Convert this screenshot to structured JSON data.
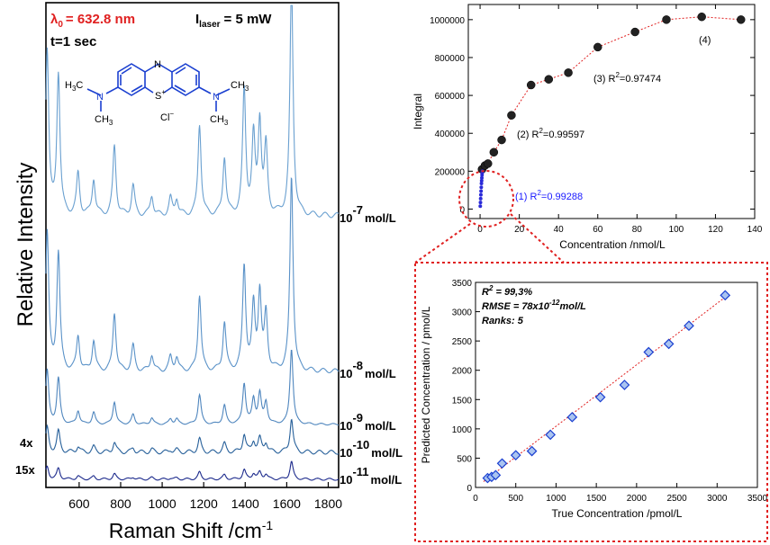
{
  "raman": {
    "ylabel": "Relative Intensity",
    "xlabel_main": "Raman Shift /cm",
    "xlabel_sup": "-1",
    "x_ticks": [
      "600",
      "800",
      "1000",
      "1200",
      "1400",
      "1600",
      "1800"
    ],
    "lambda_sym": "λ",
    "lambda_sub": "0",
    "lambda_val": "= 632.8 nm",
    "laser_I": "I",
    "laser_sub": "laser",
    "laser_val": "= 5 mW",
    "time": "t=1 sec",
    "mol_chain": {
      "H3C": "H",
      "sub3": "3",
      "Cprefix": "C",
      "N": "N",
      "S": "S",
      "plus": "+",
      "CH3": "CH",
      "CH3sub": "3",
      "Cl": "Cl",
      "minus": "−"
    },
    "traces": [
      {
        "base": "10",
        "exp": "-7",
        "unit": "mol/L"
      },
      {
        "base": "10",
        "exp": "-8",
        "unit": "mol/L"
      },
      {
        "base": "10",
        "exp": "-9",
        "unit": "mol/L"
      },
      {
        "base": "10",
        "exp": "-10",
        "unit": "mol/L"
      },
      {
        "base": "10",
        "exp": "-11",
        "unit": "mol/L"
      }
    ],
    "mult_4x": "4x",
    "mult_15x": "15x"
  },
  "calib": {
    "ylabel": "Integral",
    "xlabel": "Concentration /nmol/L",
    "x_ticks": [
      "0",
      "20",
      "40",
      "60",
      "80",
      "100",
      "120",
      "140"
    ],
    "y_ticks": [
      "0",
      "200000",
      "400000",
      "600000",
      "800000",
      "1000000"
    ],
    "ann1": "(1) R",
    "ann1_val": "=0.99288",
    "ann2": "(2)  R",
    "ann2_val": "=0.99597",
    "ann3": "(3) R",
    "ann3_val": "=0.97474",
    "ann4": "(4)",
    "sup2": "2"
  },
  "pred": {
    "ylabel": "Predicted Concentration / pmol/L",
    "xlabel": "True Concentration /pmol/L",
    "x_ticks": [
      "0",
      "500",
      "1000",
      "1500",
      "2000",
      "2500",
      "3000",
      "3500"
    ],
    "y_ticks": [
      "0",
      "500",
      "1000",
      "1500",
      "2000",
      "2500",
      "3000",
      "3500"
    ],
    "r2_label": "R",
    "r2_sup": "2",
    "r2_val": " = 99,3%",
    "rmse_label": "RMSE = 78x10",
    "rmse_sup": "-12",
    "rmse_unit": "mol/L",
    "ranks": "Ranks: 5"
  },
  "chart_data": [
    {
      "type": "line",
      "title": "",
      "xlabel": "Raman Shift /cm-1",
      "ylabel": "Relative Intensity",
      "xlim": [
        440,
        1850
      ],
      "peaks_cm1": [
        446,
        500,
        595,
        670,
        770,
        860,
        950,
        1040,
        1070,
        1180,
        1300,
        1395,
        1440,
        1470,
        1500,
        1623
      ],
      "series": [
        {
          "name": "10-7 mol/L"
        },
        {
          "name": "10-8 mol/L"
        },
        {
          "name": "10-9 mol/L"
        },
        {
          "name": "10-10 mol/L"
        },
        {
          "name": "10-11 mol/L"
        }
      ]
    },
    {
      "type": "scatter",
      "xlabel": "Concentration /nmol/L",
      "ylabel": "Integral",
      "xlim": [
        -6,
        140
      ],
      "ylim": [
        -50000,
        1080000
      ],
      "series": [
        {
          "name": "",
          "x": [
            1,
            2.5,
            4,
            7,
            11,
            16,
            26,
            35,
            45,
            60,
            79,
            95,
            113,
            133
          ],
          "y": [
            210000,
            230000,
            240000,
            300000,
            365000,
            495000,
            655000,
            685000,
            720000,
            855000,
            935000,
            1000000,
            1015000,
            1000000
          ]
        },
        {
          "name": "",
          "x": [
            0.1,
            0.2,
            0.3,
            0.4,
            0.5,
            0.6,
            0.7,
            0.8,
            0.9,
            1.0,
            1.1,
            1.2
          ],
          "y": [
            15000,
            35000,
            55000,
            75000,
            95000,
            115000,
            135000,
            150000,
            165000,
            180000,
            192000,
            200000
          ]
        }
      ]
    },
    {
      "type": "scatter",
      "xlabel": "True Concentration /pmol/L",
      "ylabel": "Predicted Concentration / pmol/L",
      "xlim": [
        0,
        3500
      ],
      "ylim": [
        0,
        3500
      ],
      "series": [
        {
          "name": "",
          "x": [
            150,
            200,
            250,
            330,
            500,
            700,
            930,
            1200,
            1550,
            1850,
            2150,
            2400,
            2650,
            3100
          ],
          "y": [
            160,
            180,
            210,
            410,
            550,
            620,
            900,
            1200,
            1540,
            1750,
            2310,
            2450,
            2760,
            3280
          ]
        }
      ]
    }
  ]
}
